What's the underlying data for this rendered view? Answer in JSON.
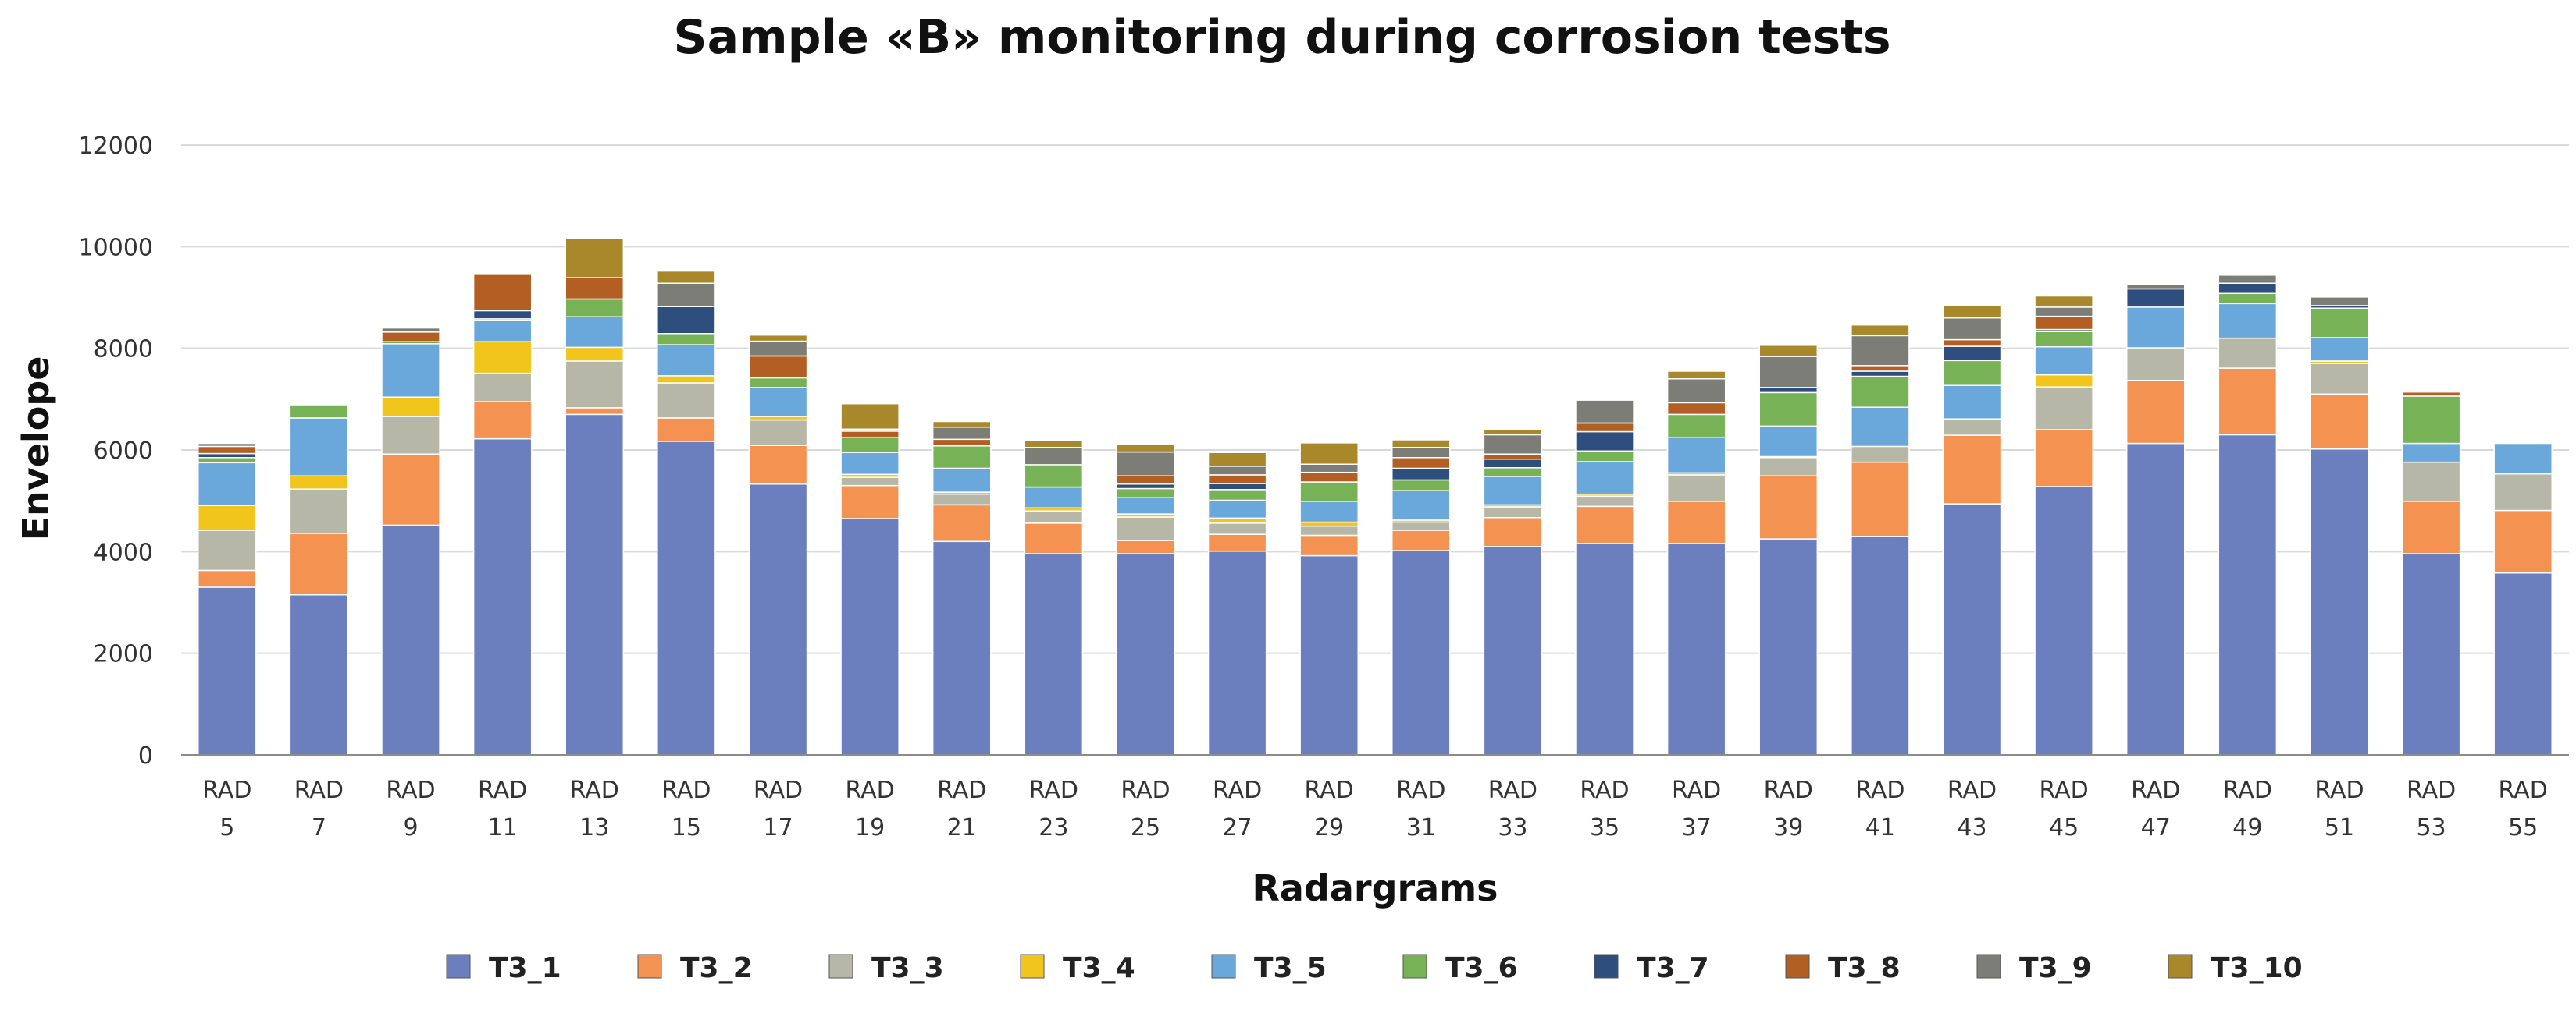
{
  "chart_data": {
    "type": "bar",
    "stacked": true,
    "title": "Sample «B»  monitoring during corrosion tests",
    "xlabel": "Radargrams",
    "ylabel": "Envelope",
    "ylim": [
      0,
      12000
    ],
    "yticks": [
      0,
      2000,
      4000,
      6000,
      8000,
      10000,
      12000
    ],
    "grid": true,
    "legend_position": "bottom",
    "categories": [
      [
        "RAD",
        "5"
      ],
      [
        "RAD",
        "7"
      ],
      [
        "RAD",
        "9"
      ],
      [
        "RAD",
        "11"
      ],
      [
        "RAD",
        "13"
      ],
      [
        "RAD",
        "15"
      ],
      [
        "RAD",
        "17"
      ],
      [
        "RAD",
        "19"
      ],
      [
        "RAD",
        "21"
      ],
      [
        "RAD",
        "23"
      ],
      [
        "RAD",
        "25"
      ],
      [
        "RAD",
        "27"
      ],
      [
        "RAD",
        "29"
      ],
      [
        "RAD",
        "31"
      ],
      [
        "RAD",
        "33"
      ],
      [
        "RAD",
        "35"
      ],
      [
        "RAD",
        "37"
      ],
      [
        "RAD",
        "39"
      ],
      [
        "RAD",
        "41"
      ],
      [
        "RAD",
        "43"
      ],
      [
        "RAD",
        "45"
      ],
      [
        "RAD",
        "47"
      ],
      [
        "RAD",
        "49"
      ],
      [
        "RAD",
        "51"
      ],
      [
        "RAD",
        "53"
      ],
      [
        "RAD",
        "55"
      ]
    ],
    "series": [
      {
        "name": "T3_1",
        "color": "#6b7fbf",
        "values": [
          3300,
          3150,
          4520,
          6220,
          6700,
          6170,
          5330,
          4650,
          4200,
          3960,
          3960,
          4010,
          3920,
          4020,
          4100,
          4160,
          4160,
          4250,
          4300,
          4940,
          5280,
          6130,
          6300,
          6020,
          3960,
          3580
        ]
      },
      {
        "name": "T3_2",
        "color": "#f39251",
        "values": [
          330,
          1210,
          1400,
          730,
          130,
          460,
          760,
          650,
          720,
          600,
          260,
          330,
          400,
          400,
          570,
          730,
          830,
          1240,
          1460,
          1350,
          1120,
          1240,
          1310,
          1080,
          1030,
          1230
        ]
      },
      {
        "name": "T3_3",
        "color": "#b7b7a7",
        "values": [
          790,
          870,
          740,
          560,
          920,
          690,
          500,
          160,
          210,
          240,
          460,
          220,
          180,
          160,
          210,
          200,
          520,
          360,
          310,
          320,
          840,
          640,
          590,
          600,
          770,
          720
        ]
      },
      {
        "name": "T3_4",
        "color": "#f2c51d",
        "values": [
          490,
          260,
          380,
          620,
          270,
          140,
          70,
          60,
          40,
          60,
          60,
          100,
          80,
          40,
          40,
          40,
          40,
          20,
          0,
          0,
          240,
          0,
          0,
          50,
          0,
          0
        ]
      },
      {
        "name": "T3_5",
        "color": "#6aa7db",
        "values": [
          840,
          1140,
          1050,
          420,
          600,
          610,
          570,
          430,
          470,
          410,
          320,
          350,
          410,
          580,
          560,
          640,
          700,
          600,
          770,
          660,
          550,
          800,
          680,
          460,
          370,
          600
        ]
      },
      {
        "name": "T3_6",
        "color": "#78b257",
        "values": [
          100,
          260,
          40,
          30,
          350,
          220,
          190,
          300,
          440,
          440,
          180,
          210,
          380,
          210,
          170,
          210,
          450,
          660,
          610,
          490,
          300,
          0,
          200,
          580,
          930,
          0
        ]
      },
      {
        "name": "T3_7",
        "color": "#2e4e7e",
        "values": [
          80,
          0,
          0,
          160,
          0,
          530,
          0,
          0,
          0,
          0,
          90,
          120,
          0,
          230,
          170,
          380,
          0,
          100,
          100,
          280,
          40,
          360,
          200,
          50,
          0,
          0
        ]
      },
      {
        "name": "T3_8",
        "color": "#b35e22",
        "values": [
          140,
          0,
          190,
          730,
          420,
          0,
          430,
          120,
          130,
          0,
          160,
          170,
          190,
          210,
          100,
          170,
          230,
          0,
          110,
          130,
          260,
          0,
          0,
          0,
          80,
          0
        ]
      },
      {
        "name": "T3_9",
        "color": "#7d7d77",
        "values": [
          60,
          0,
          80,
          0,
          0,
          460,
          290,
          40,
          240,
          340,
          470,
          170,
          160,
          200,
          380,
          450,
          470,
          610,
          590,
          430,
          180,
          80,
          160,
          170,
          0,
          0
        ]
      },
      {
        "name": "T3_10",
        "color": "#a8882a",
        "values": [
          0,
          0,
          0,
          0,
          780,
          240,
          120,
          500,
          110,
          140,
          150,
          270,
          420,
          150,
          100,
          0,
          150,
          220,
          210,
          240,
          220,
          0,
          0,
          0,
          0,
          0
        ]
      }
    ]
  }
}
